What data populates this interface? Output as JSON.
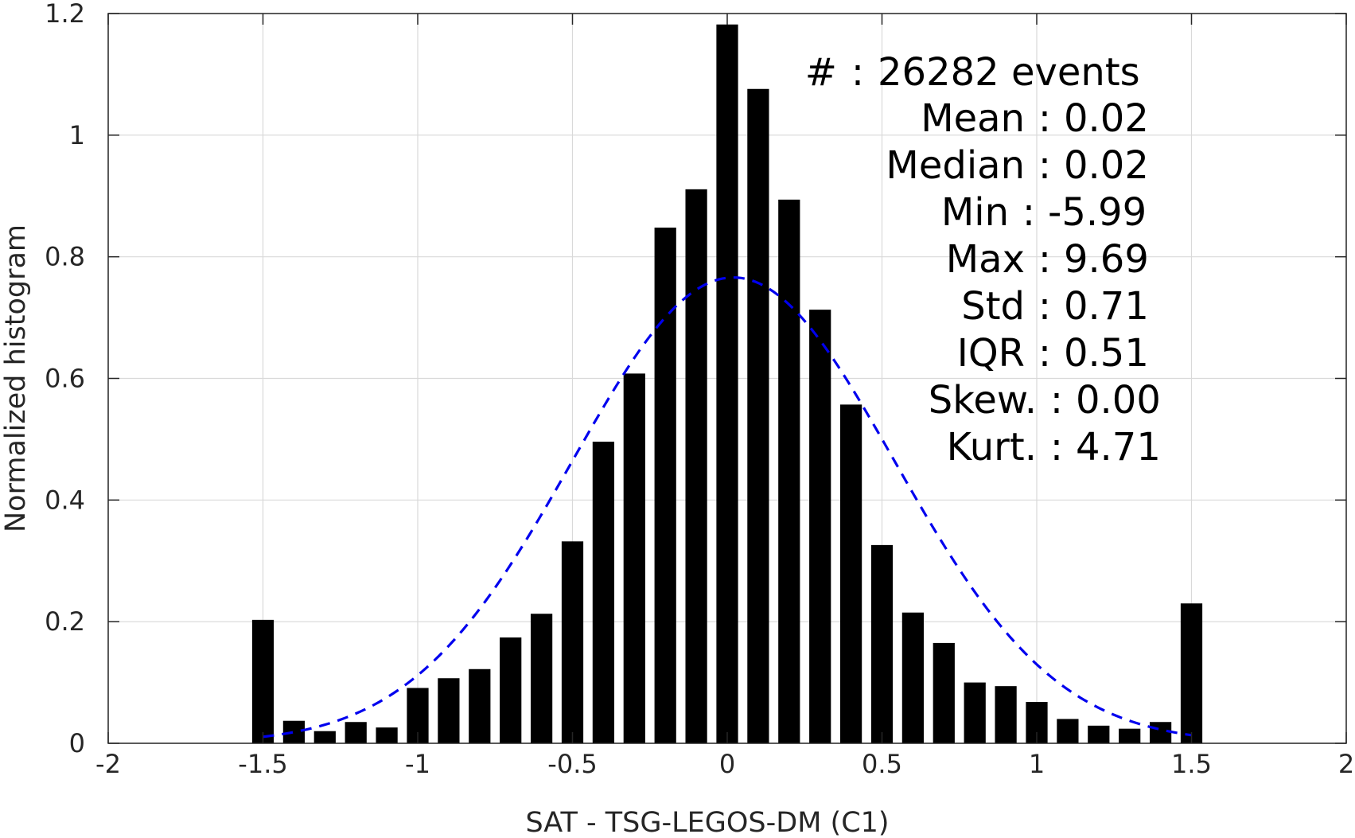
{
  "chart_data": {
    "type": "bar",
    "xlabel": "SAT - TSG-LEGOS-DM (C1)",
    "ylabel": "Normalized histogram",
    "xlim": [
      -2,
      2
    ],
    "ylim": [
      0,
      1.2
    ],
    "xticks": [
      -2,
      -1.5,
      -1,
      -0.5,
      0,
      0.5,
      1,
      1.5,
      2
    ],
    "xtick_labels": [
      "-2",
      "-1.5",
      "-1",
      "-0.5",
      "0",
      "0.5",
      "1",
      "1.5",
      "2"
    ],
    "yticks": [
      0,
      0.2,
      0.4,
      0.6,
      0.8,
      1,
      1.2
    ],
    "ytick_labels": [
      "0",
      "0.2",
      "0.4",
      "0.6",
      "0.8",
      "1",
      "1.2"
    ],
    "grid": true,
    "bar_width": 0.07,
    "series": [
      {
        "type": "bar",
        "color": "#000000",
        "x": [
          -1.5,
          -1.4,
          -1.3,
          -1.2,
          -1.1,
          -1.0,
          -0.9,
          -0.8,
          -0.7,
          -0.6,
          -0.5,
          -0.4,
          -0.3,
          -0.2,
          -0.1,
          0.0,
          0.1,
          0.2,
          0.3,
          0.4,
          0.5,
          0.6,
          0.7,
          0.8,
          0.9,
          1.0,
          1.1,
          1.2,
          1.3,
          1.4,
          1.5
        ],
        "values": [
          0.203,
          0.037,
          0.02,
          0.035,
          0.026,
          0.091,
          0.107,
          0.122,
          0.174,
          0.213,
          0.332,
          0.496,
          0.608,
          0.848,
          0.911,
          1.182,
          1.076,
          0.894,
          0.713,
          0.557,
          0.326,
          0.215,
          0.165,
          0.1,
          0.094,
          0.068,
          0.04,
          0.029,
          0.024,
          0.035,
          0.23
        ]
      },
      {
        "type": "line",
        "style": "dashed",
        "color": "#0000ee",
        "mean": 0.02,
        "std": 0.52,
        "peak": 0.766,
        "x_range": [
          -1.5,
          1.5
        ]
      }
    ],
    "stats": [
      {
        "label": "#",
        "value": "26282 events"
      },
      {
        "label": "Mean",
        "value": "0.02"
      },
      {
        "label": "Median",
        "value": "0.02"
      },
      {
        "label": "Min",
        "value": "-5.99"
      },
      {
        "label": "Max",
        "value": "9.69"
      },
      {
        "label": "Std",
        "value": "0.71"
      },
      {
        "label": "IQR",
        "value": "0.51"
      },
      {
        "label": "Skew.",
        "value": "0.00"
      },
      {
        "label": "Kurt.",
        "value": "4.71"
      }
    ]
  }
}
